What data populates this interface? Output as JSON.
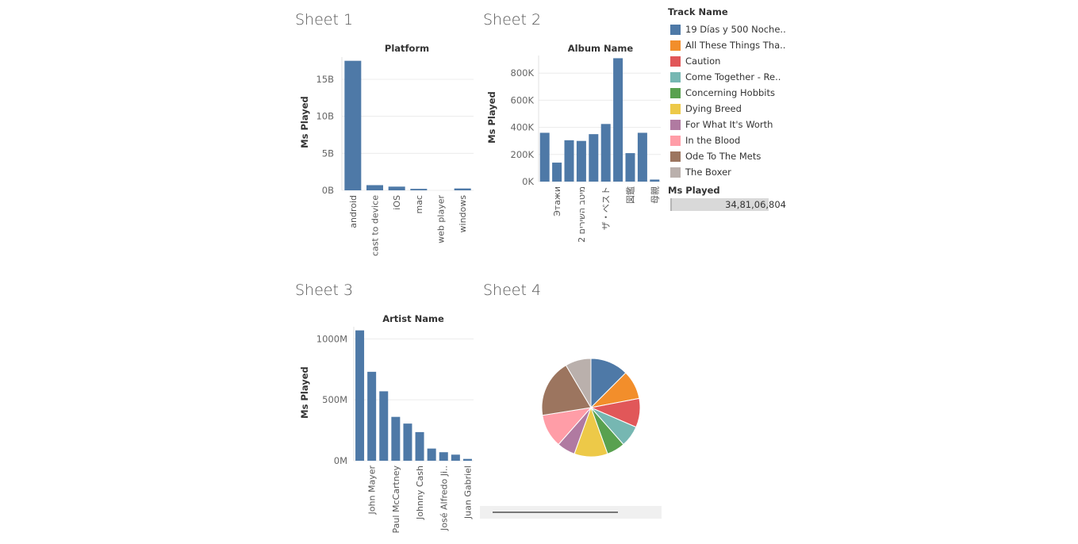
{
  "sheets": [
    {
      "id": "sheet1",
      "title": "Sheet 1"
    },
    {
      "id": "sheet2",
      "title": "Sheet 2"
    },
    {
      "id": "sheet3",
      "title": "Sheet 3"
    },
    {
      "id": "sheet4",
      "title": "Sheet 4"
    }
  ],
  "bar_color": "#4e79a7",
  "legend": {
    "title": "Track Name",
    "items": [
      {
        "label": "19 Días y 500 Noche..",
        "color": "#4e79a7"
      },
      {
        "label": "All These Things Tha..",
        "color": "#f28e2b"
      },
      {
        "label": "Caution",
        "color": "#e15759"
      },
      {
        "label": "Come Together - Re..",
        "color": "#76b7b2"
      },
      {
        "label": "Concerning Hobbits",
        "color": "#59a14f"
      },
      {
        "label": "Dying Breed",
        "color": "#edc948"
      },
      {
        "label": "For What It's Worth",
        "color": "#b07aa1"
      },
      {
        "label": "In the Blood",
        "color": "#ff9da7"
      },
      {
        "label": "Ode To The Mets",
        "color": "#9c755f"
      },
      {
        "label": "The Boxer",
        "color": "#bab0ac"
      }
    ],
    "size_title": "Ms Played",
    "size_value": "34,81,06,804"
  },
  "chart_data": [
    {
      "type": "bar",
      "sheet": "sheet1",
      "title": "Platform",
      "ylabel": "Ms Played",
      "ylim": [
        0,
        18000000000
      ],
      "yticks": [
        {
          "v": 0,
          "label": "0B"
        },
        {
          "v": 5000000000,
          "label": "5B"
        },
        {
          "v": 10000000000,
          "label": "10B"
        },
        {
          "v": 15000000000,
          "label": "15B"
        }
      ],
      "categories": [
        "android",
        "cast to device",
        "iOS",
        "mac",
        "web player",
        "windows"
      ],
      "values": [
        17500000000,
        700000000,
        500000000,
        200000000,
        0,
        250000000
      ]
    },
    {
      "type": "bar",
      "sheet": "sheet2",
      "title": "Album Name",
      "ylabel": "Ms Played",
      "ylim": [
        0,
        930000
      ],
      "yticks": [
        {
          "v": 0,
          "label": "0K"
        },
        {
          "v": 200000,
          "label": "200K"
        },
        {
          "v": 400000,
          "label": "400K"
        },
        {
          "v": 600000,
          "label": "600K"
        },
        {
          "v": 800000,
          "label": "800K"
        }
      ],
      "categories": [
        "",
        "Этажи",
        "",
        "מיטב השירים 2",
        "",
        "ザ・ベスト",
        "",
        "図鑑",
        "",
        "母親"
      ],
      "values": [
        360000,
        140000,
        305000,
        300000,
        350000,
        425000,
        910000,
        210000,
        360000,
        15000
      ]
    },
    {
      "type": "bar",
      "sheet": "sheet3",
      "title": "Artist Name",
      "ylabel": "Ms Played",
      "ylim": [
        0,
        1100000000
      ],
      "yticks": [
        {
          "v": 0,
          "label": "0M"
        },
        {
          "v": 500000000,
          "label": "500M"
        },
        {
          "v": 1000000000,
          "label": "1000M"
        }
      ],
      "categories": [
        "",
        "John Mayer",
        "",
        "Paul McCartney",
        "",
        "Johnny Cash",
        "",
        "José Alfredo Ji..",
        "",
        "Juan Gabriel"
      ],
      "values": [
        1070000000,
        730000000,
        570000000,
        360000000,
        305000000,
        235000000,
        100000000,
        70000000,
        50000000,
        15000000
      ]
    },
    {
      "type": "pie",
      "sheet": "sheet4",
      "labels": [
        "19 Días y 500 Noche..",
        "All These Things Tha..",
        "Caution",
        "Come Together - Re..",
        "Concerning Hobbits",
        "Dying Breed",
        "For What It's Worth",
        "In the Blood",
        "Ode To The Mets",
        "The Boxer"
      ],
      "values": [
        12.5,
        9.5,
        9.5,
        7,
        6,
        11,
        6,
        11,
        19,
        8.5
      ],
      "colors": [
        "#4e79a7",
        "#f28e2b",
        "#e15759",
        "#76b7b2",
        "#59a14f",
        "#edc948",
        "#b07aa1",
        "#ff9da7",
        "#9c755f",
        "#bab0ac"
      ]
    }
  ]
}
